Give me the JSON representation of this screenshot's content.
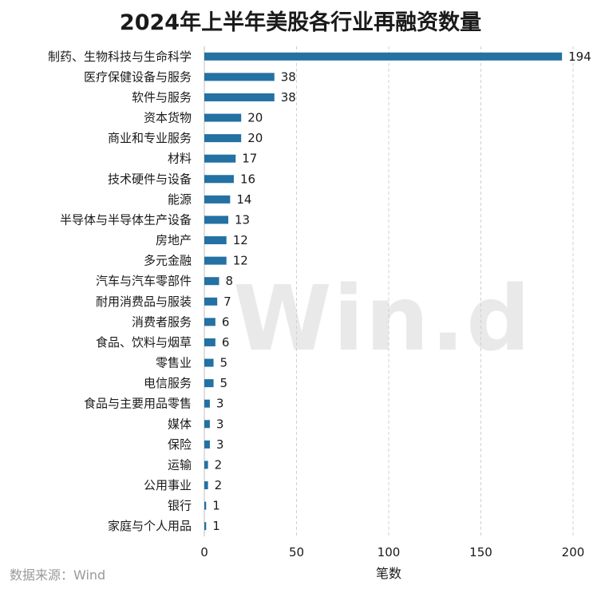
{
  "watermark": "Win.d",
  "source": "数据来源：Wind",
  "colors": {
    "bar": "#2471a3",
    "grid": "#d0d0d0"
  },
  "chart_data": {
    "type": "bar",
    "orientation": "horizontal",
    "title": "2024年上半年美股各行业再融资数量",
    "xlabel": "笔数",
    "ylabel": "",
    "xlim": [
      0,
      200
    ],
    "xticks": [
      0,
      50,
      100,
      150,
      200
    ],
    "grid": "vertical dashed",
    "categories": [
      "制药、生物科技与生命科学",
      "医疗保健设备与服务",
      "软件与服务",
      "资本货物",
      "商业和专业服务",
      "材料",
      "技术硬件与设备",
      "能源",
      "半导体与半导体生产设备",
      "房地产",
      "多元金融",
      "汽车与汽车零部件",
      "耐用消费品与服装",
      "消费者服务",
      "食品、饮料与烟草",
      "零售业",
      "电信服务",
      "食品与主要用品零售",
      "媒体",
      "保险",
      "运输",
      "公用事业",
      "银行",
      "家庭与个人用品"
    ],
    "values": [
      194,
      38,
      38,
      20,
      20,
      17,
      16,
      14,
      13,
      12,
      12,
      8,
      7,
      6,
      6,
      5,
      5,
      3,
      3,
      3,
      2,
      2,
      1,
      1
    ]
  }
}
